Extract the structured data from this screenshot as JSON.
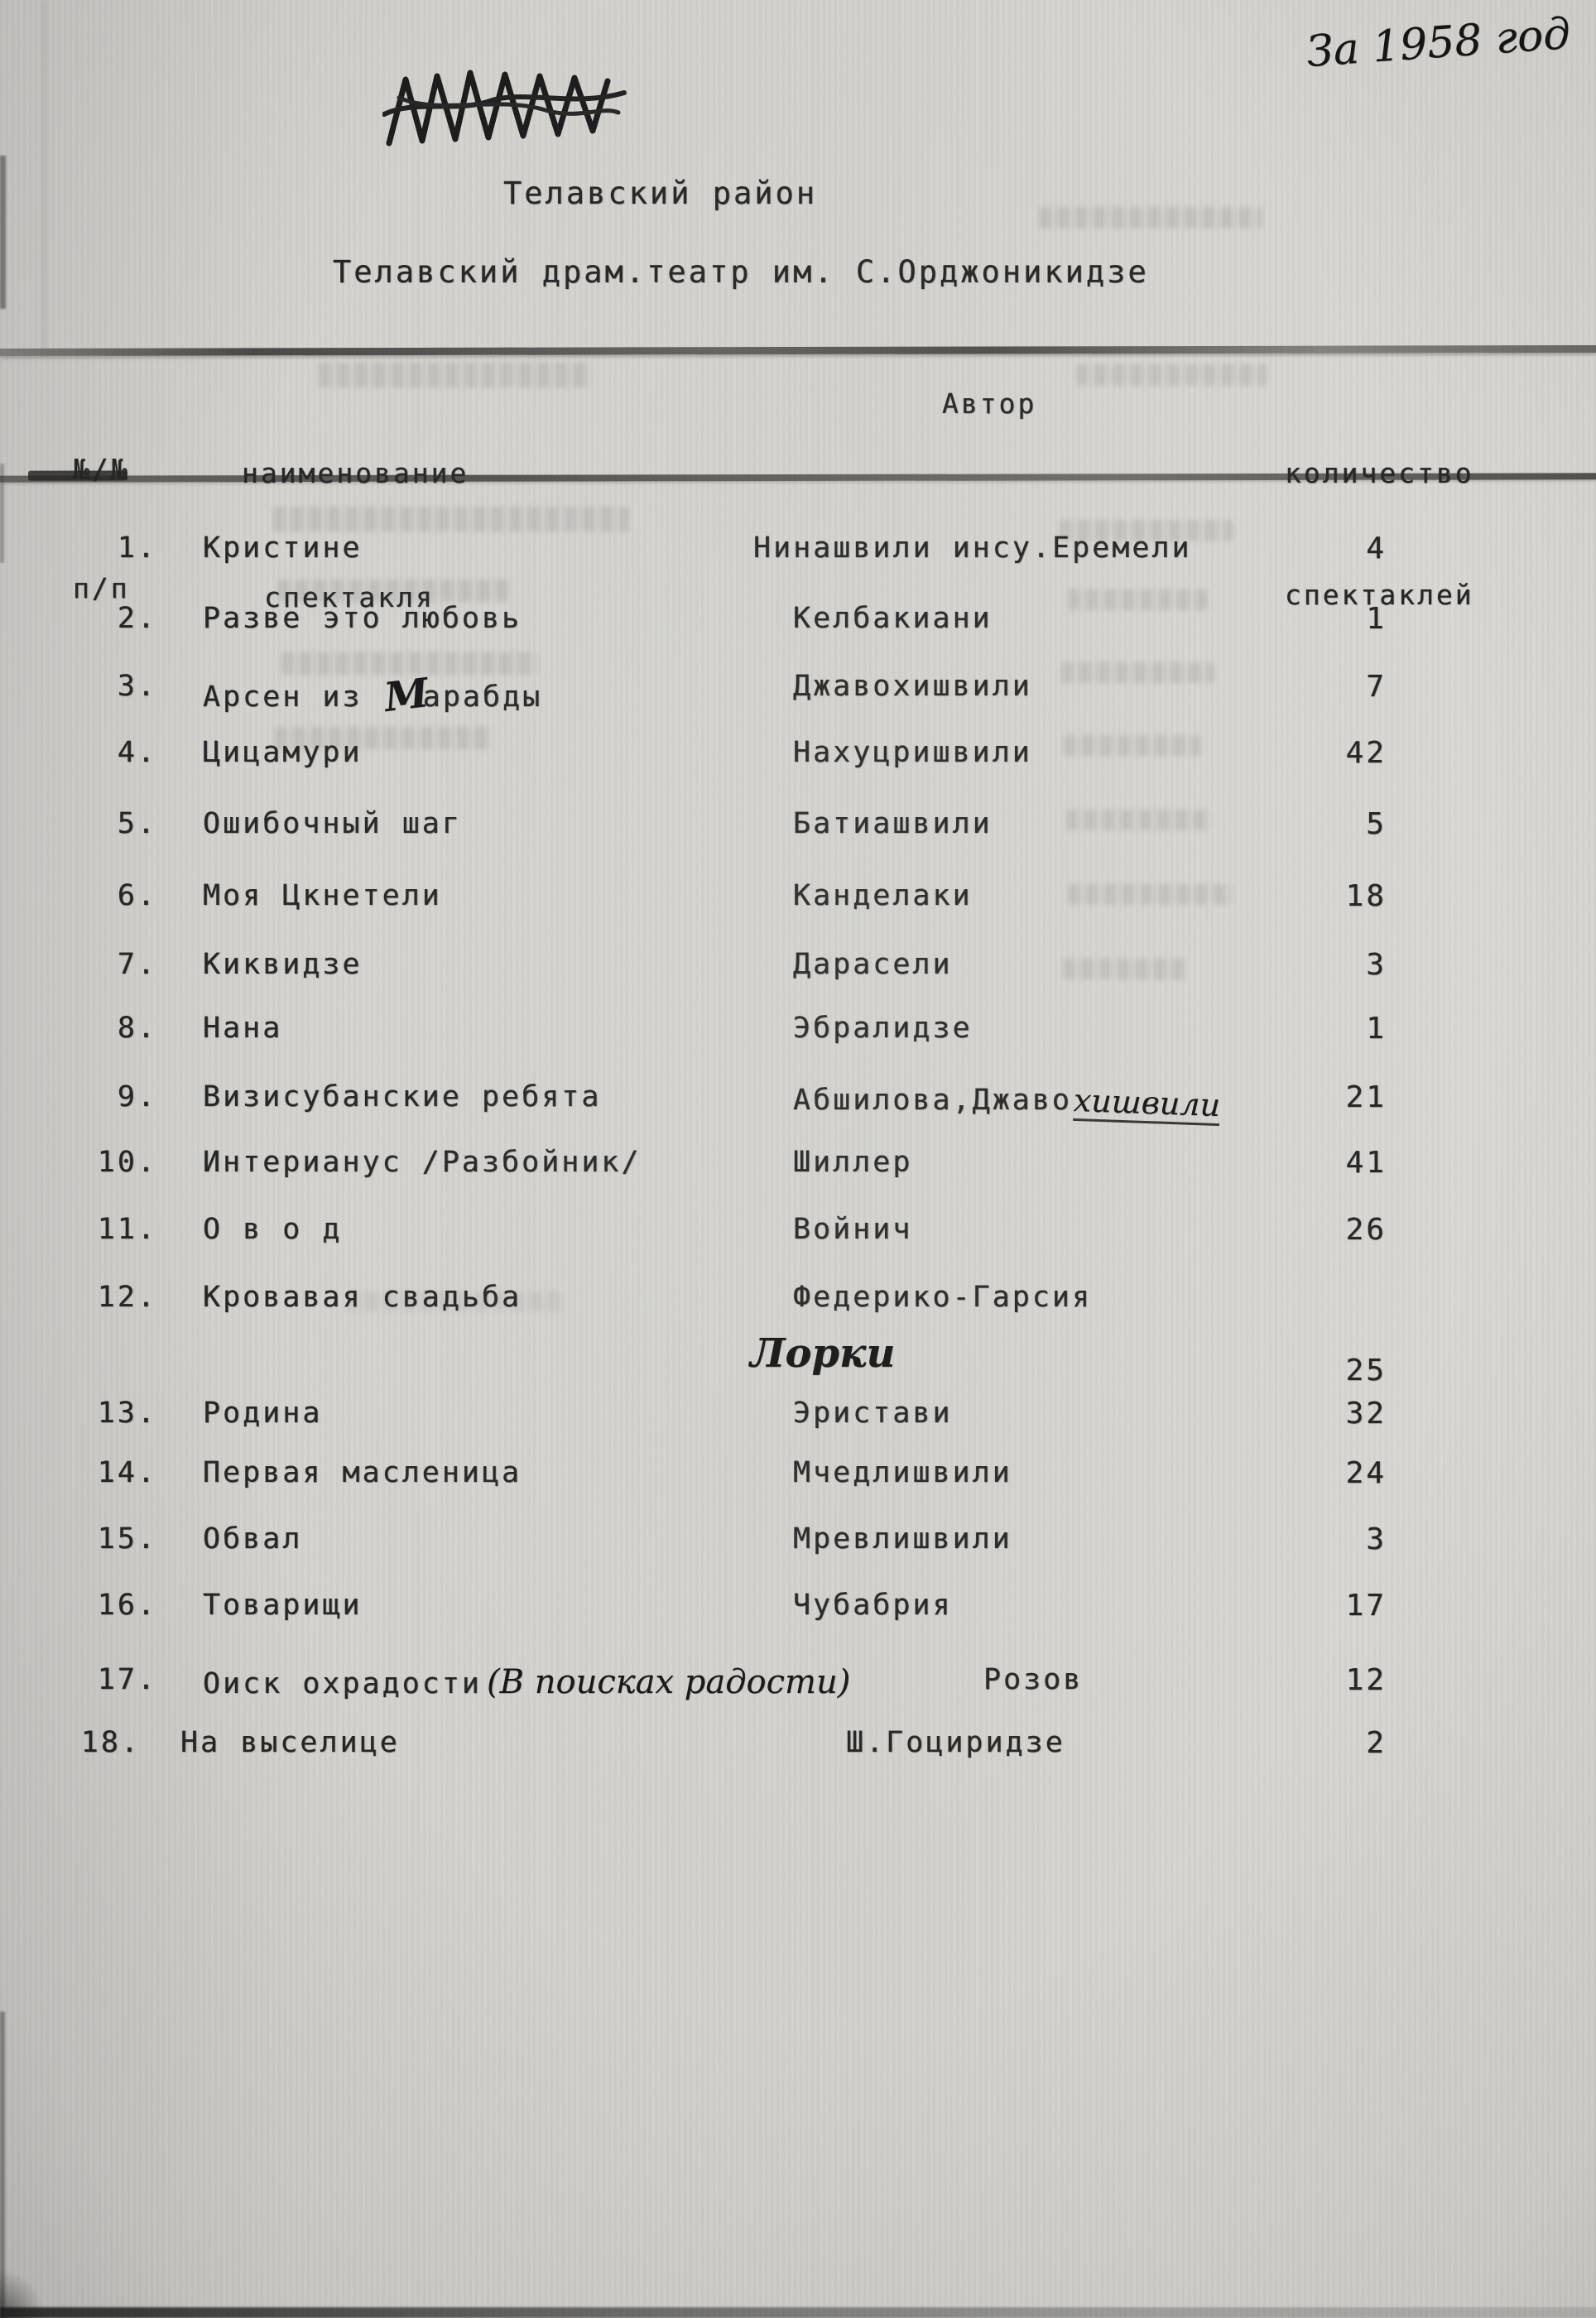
{
  "page": {
    "year_note_handwritten": "За 1958 год",
    "title_line1": "Телавский район",
    "title_line2": "Телавский драм.театр им. С.Орджоникидзе"
  },
  "table": {
    "header": {
      "col_num_line1": "№/№",
      "col_num_line2": "п/п",
      "col_name_line1": "наименование",
      "col_name_line2": "спектакля",
      "col_author": "Автор",
      "col_count_line1": "количество",
      "col_count_line2": "спектаклей"
    },
    "rows": [
      {
        "num": "1.",
        "title": "Кристине",
        "author": "Нинашвили инсу.Еремели",
        "count": "4"
      },
      {
        "num": "2.",
        "title": "Разве это любовь",
        "author": "Келбакиани",
        "count": "1"
      },
      {
        "num": "3.",
        "title_pre": "Арсен из ",
        "title_hw": "М",
        "title_post": "арабды",
        "author": "Джавохишвили",
        "count": "7"
      },
      {
        "num": "4.",
        "title": "Цицамури",
        "author": "Нахуцришвили",
        "count": "42"
      },
      {
        "num": "5.",
        "title": "Ошибочный шаг",
        "author": "Батиашвили",
        "count": "5"
      },
      {
        "num": "6.",
        "title": "Моя Цкнетели",
        "author": "Канделаки",
        "count": "18"
      },
      {
        "num": "7.",
        "title": "Киквидзе",
        "author": "Дарасели",
        "count": "3"
      },
      {
        "num": "8.",
        "title": "Нана",
        "author": "Эбралидзе",
        "count": "1"
      },
      {
        "num": "9.",
        "title": "Визисубанские ребята",
        "author_pre": "Абшилова,Джаво",
        "author_hw": "хишвили",
        "count": "21"
      },
      {
        "num": "10.",
        "title": "Интерианус /Разбойник/",
        "author": "Шиллер",
        "count": "41"
      },
      {
        "num": "11.",
        "title": "О в о д",
        "author": "Войнич",
        "count": "26"
      },
      {
        "num": "12.",
        "title": "Кровавая свадьба",
        "author": "Федерико-Гарсия",
        "author_line2_hw": "Лорки",
        "count": "25"
      },
      {
        "num": "13.",
        "title": "Родина",
        "author": "Эристави",
        "count": "32"
      },
      {
        "num": "14.",
        "title": "Первая масленица",
        "author": "Мчедлишвили",
        "count": "24"
      },
      {
        "num": "15.",
        "title": "Обвал",
        "author": "Мревлишвили",
        "count": "3"
      },
      {
        "num": "16.",
        "title": "Товарищи",
        "author": "Чубабрия",
        "count": "17"
      },
      {
        "num": "17.",
        "title_pre": "Оиск охрадости",
        "title_hw": "(В поисках радости)",
        "author": "Розов",
        "count": "12"
      },
      {
        "num": "18.",
        "title": "На выселице",
        "author": "Ш.Гоциридзе",
        "count": "2"
      }
    ]
  }
}
